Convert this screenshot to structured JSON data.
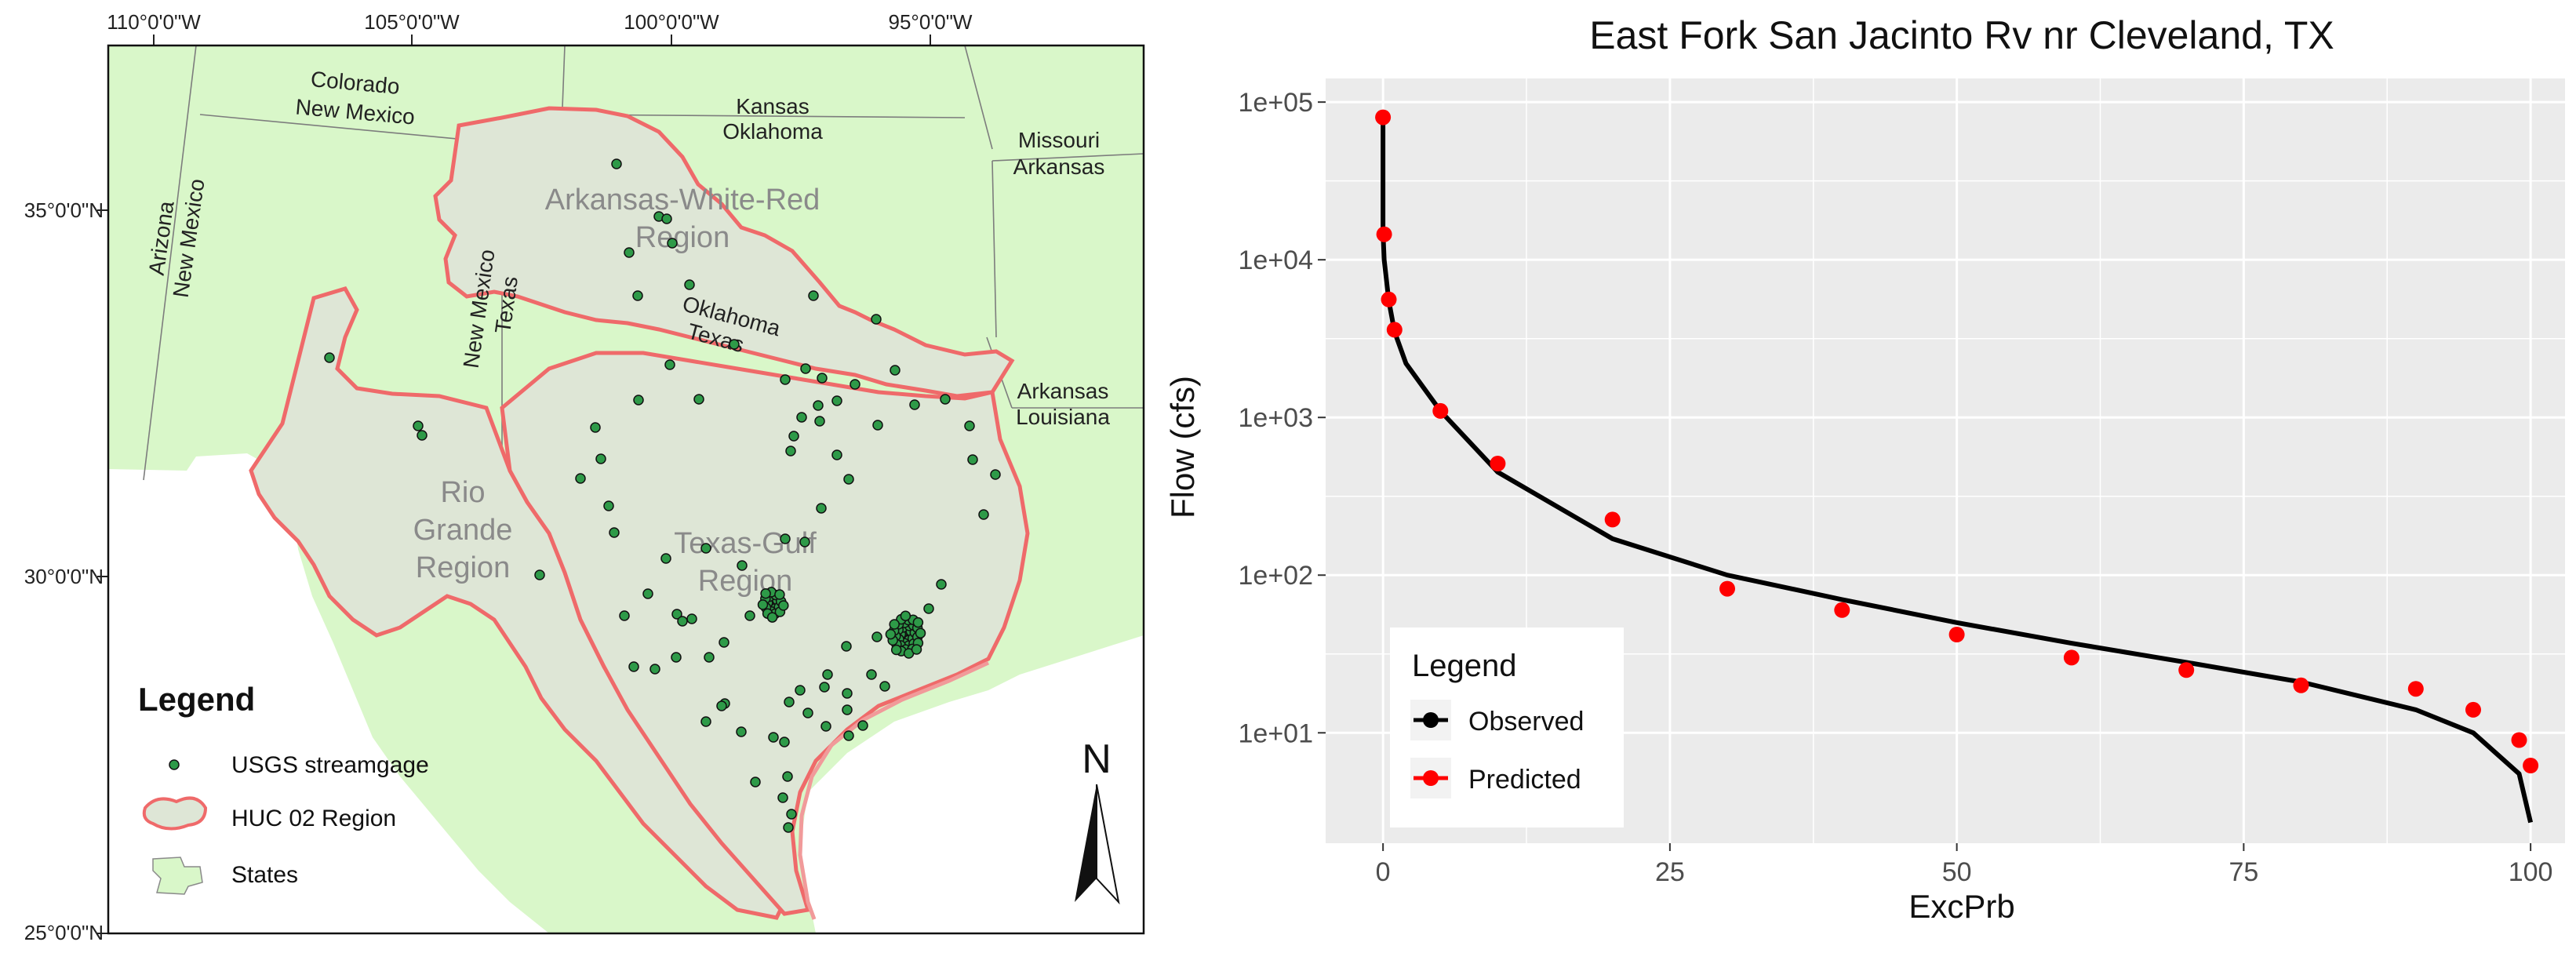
{
  "map": {
    "lon_labels": [
      "110°0'0\"W",
      "105°0'0\"W",
      "100°0'0\"W",
      "95°0'0\"W"
    ],
    "lat_labels": [
      "35°0'0\"N",
      "30°0'0\"N",
      "25°0'0\"N"
    ],
    "state_labels": {
      "colorado": "Colorado",
      "new_mexico_top": "New Mexico",
      "kansas": "Kansas",
      "oklahoma_top": "Oklahoma",
      "missouri": "Missouri",
      "arkansas_top": "Arkansas",
      "arizona": "Arizona",
      "new_mexico_left": "New Mexico",
      "new_mexico_mid": "New Mexico",
      "texas_mid": "Texas",
      "oklahoma_mid": "Oklahoma",
      "texas_border": "Texas",
      "arkansas_right": "Arkansas",
      "louisiana": "Louisiana"
    },
    "region_labels": {
      "awr_line1": "Arkansas-White-Red",
      "awr_line2": "Region",
      "rio_line1": "Rio",
      "rio_line2": "Grande",
      "rio_line3": "Region",
      "tg_line1": "Texas-Gulf",
      "tg_line2": "Region"
    },
    "legend": {
      "title": "Legend",
      "items": [
        "USGS streamgage",
        "HUC 02 Region",
        "States"
      ]
    },
    "north_arrow": "N",
    "colors": {
      "states_fill": "#d9f7c9",
      "region_fill": "#dee6d6",
      "region_outline": "#ef6a6a",
      "streamgage_fill": "#2e9a48",
      "coast_water": "#ffffff"
    }
  },
  "chart_data": {
    "type": "line",
    "title": "East Fork San Jacinto Rv nr Cleveland, TX",
    "xlabel": "ExcPrb",
    "ylabel": "Flow (cfs)",
    "xlim": [
      -5,
      103
    ],
    "ylim_log10": [
      0.3,
      5.15
    ],
    "y_scale": "log",
    "x_ticks": [
      0,
      25,
      50,
      75,
      100
    ],
    "y_ticks": [
      "1e+01",
      "1e+02",
      "1e+03",
      "1e+04",
      "1e+05"
    ],
    "y_tick_values": [
      10,
      100,
      1000,
      10000,
      100000
    ],
    "grid": true,
    "legend": {
      "title": "Legend",
      "placement": "bottom-left",
      "entries": [
        "Observed",
        "Predicted"
      ]
    },
    "series": [
      {
        "name": "Observed",
        "color": "#000000",
        "x": [
          0,
          0,
          0.1,
          0.5,
          1,
          2,
          5,
          10,
          20,
          30,
          40,
          50,
          60,
          70,
          80,
          90,
          95,
          99,
          100
        ],
        "y": [
          80000,
          15000,
          10000,
          5500,
          3500,
          2200,
          1100,
          450,
          170,
          100,
          70,
          50,
          37,
          28,
          21,
          14,
          10,
          5.5,
          2.7
        ]
      },
      {
        "name": "Predicted",
        "color": "#ff0000",
        "x": [
          0,
          0.1,
          0.5,
          1,
          5,
          10,
          20,
          30,
          40,
          50,
          60,
          70,
          80,
          90,
          95,
          99,
          100
        ],
        "y": [
          80000,
          14500,
          5600,
          3600,
          1100,
          510,
          225,
          82,
          60,
          42,
          30,
          25,
          20,
          19,
          14,
          9,
          6.2
        ]
      }
    ],
    "colors": {
      "panel_bg": "#ebebeb",
      "grid": "#ffffff"
    }
  }
}
